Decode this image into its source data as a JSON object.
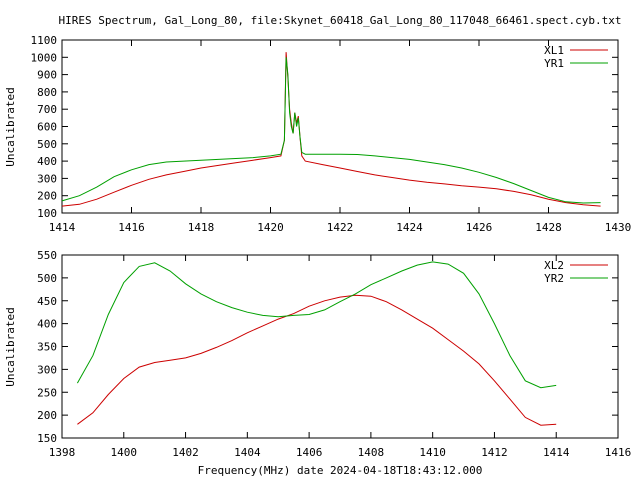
{
  "title": "HIRES Spectrum, Gal_Long_80, file:Skynet_60418_Gal_Long_80_117048_66461.spect.cyb.txt",
  "colors": {
    "red": "#cc0000",
    "green": "#00a000",
    "axis": "#000000"
  },
  "chart_data": [
    {
      "type": "line",
      "title": "",
      "xlabel": "",
      "ylabel": "Uncalibrated",
      "xlim": [
        1414,
        1430
      ],
      "ylim": [
        100,
        1100
      ],
      "xticks": [
        1414,
        1416,
        1418,
        1420,
        1422,
        1424,
        1426,
        1428,
        1430
      ],
      "yticks": [
        100,
        200,
        300,
        400,
        500,
        600,
        700,
        800,
        900,
        1000,
        1100
      ],
      "legend_position": "top-right",
      "grid": false,
      "series": [
        {
          "name": "XL1",
          "color": "#cc0000",
          "x": [
            1414.0,
            1414.5,
            1415.0,
            1415.5,
            1416.0,
            1416.5,
            1417.0,
            1417.5,
            1418.0,
            1418.5,
            1419.0,
            1419.5,
            1420.0,
            1420.3,
            1420.4,
            1420.45,
            1420.5,
            1420.55,
            1420.6,
            1420.65,
            1420.7,
            1420.75,
            1420.8,
            1420.85,
            1420.9,
            1421.0,
            1421.5,
            1422.0,
            1422.5,
            1423.0,
            1423.5,
            1424.0,
            1424.5,
            1425.0,
            1425.5,
            1426.0,
            1426.5,
            1427.0,
            1427.5,
            1428.0,
            1428.5,
            1429.0,
            1429.5
          ],
          "y": [
            140,
            150,
            180,
            220,
            260,
            295,
            320,
            340,
            360,
            375,
            390,
            405,
            420,
            430,
            520,
            1030,
            880,
            700,
            620,
            560,
            680,
            620,
            660,
            540,
            430,
            400,
            380,
            360,
            340,
            320,
            305,
            290,
            278,
            268,
            258,
            250,
            240,
            225,
            205,
            180,
            160,
            148,
            140
          ]
        },
        {
          "name": "YR1",
          "color": "#00a000",
          "x": [
            1414.0,
            1414.5,
            1415.0,
            1415.5,
            1416.0,
            1416.5,
            1417.0,
            1417.5,
            1418.0,
            1418.5,
            1419.0,
            1419.5,
            1420.0,
            1420.3,
            1420.4,
            1420.45,
            1420.5,
            1420.55,
            1420.6,
            1420.65,
            1420.7,
            1420.75,
            1420.8,
            1420.85,
            1420.9,
            1421.0,
            1421.5,
            1422.0,
            1422.5,
            1423.0,
            1423.5,
            1424.0,
            1424.5,
            1425.0,
            1425.5,
            1426.0,
            1426.5,
            1427.0,
            1427.5,
            1428.0,
            1428.5,
            1429.0,
            1429.5
          ],
          "y": [
            170,
            200,
            250,
            310,
            350,
            380,
            395,
            400,
            405,
            410,
            415,
            420,
            430,
            440,
            520,
            1000,
            900,
            680,
            600,
            560,
            680,
            600,
            650,
            540,
            450,
            440,
            440,
            440,
            438,
            430,
            420,
            410,
            395,
            380,
            360,
            335,
            305,
            270,
            230,
            190,
            165,
            158,
            160
          ]
        }
      ]
    },
    {
      "type": "line",
      "title": "",
      "xlabel": "Frequency(MHz) date 2024-04-18T18:43:12.000",
      "ylabel": "Uncalibrated",
      "xlim": [
        1398,
        1416
      ],
      "ylim": [
        150,
        550
      ],
      "xticks": [
        1398,
        1400,
        1402,
        1404,
        1406,
        1408,
        1410,
        1412,
        1414,
        1416
      ],
      "yticks": [
        150,
        200,
        250,
        300,
        350,
        400,
        450,
        500,
        550
      ],
      "legend_position": "top-right",
      "grid": false,
      "series": [
        {
          "name": "XL2",
          "color": "#cc0000",
          "x": [
            1398.5,
            1399.0,
            1399.5,
            1400.0,
            1400.5,
            1401.0,
            1401.5,
            1402.0,
            1402.5,
            1403.0,
            1403.5,
            1404.0,
            1404.5,
            1405.0,
            1405.5,
            1406.0,
            1406.5,
            1407.0,
            1407.5,
            1408.0,
            1408.5,
            1409.0,
            1409.5,
            1410.0,
            1410.5,
            1411.0,
            1411.5,
            1412.0,
            1412.5,
            1413.0,
            1413.5,
            1414.0
          ],
          "y": [
            180,
            205,
            245,
            280,
            305,
            315,
            320,
            325,
            335,
            348,
            363,
            380,
            395,
            410,
            422,
            438,
            450,
            458,
            462,
            460,
            448,
            430,
            410,
            390,
            365,
            340,
            312,
            275,
            235,
            195,
            178,
            180
          ]
        },
        {
          "name": "YR2",
          "color": "#00a000",
          "x": [
            1398.5,
            1399.0,
            1399.5,
            1400.0,
            1400.5,
            1401.0,
            1401.5,
            1402.0,
            1402.5,
            1403.0,
            1403.5,
            1404.0,
            1404.5,
            1405.0,
            1405.5,
            1406.0,
            1406.5,
            1407.0,
            1407.5,
            1408.0,
            1408.5,
            1409.0,
            1409.5,
            1410.0,
            1410.5,
            1411.0,
            1411.5,
            1412.0,
            1412.5,
            1413.0,
            1413.5,
            1414.0
          ],
          "y": [
            270,
            330,
            420,
            490,
            525,
            533,
            515,
            487,
            465,
            448,
            435,
            425,
            418,
            415,
            418,
            420,
            430,
            448,
            465,
            485,
            500,
            515,
            528,
            535,
            530,
            510,
            465,
            400,
            330,
            275,
            260,
            265
          ]
        }
      ]
    }
  ]
}
